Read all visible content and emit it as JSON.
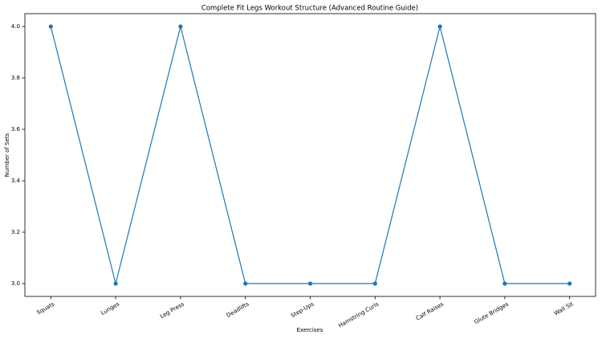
{
  "chart_data": {
    "type": "line",
    "title": "Complete Fit Legs Workout Structure (Advanced Routine Guide)",
    "x_label": "Exercises",
    "y_label": "Number of Sets",
    "categories": [
      "Squats",
      "Lunges",
      "Leg Press",
      "Deadlifts",
      "Step-Ups",
      "Hamstring Curls",
      "Calf Raises",
      "Glute Bridges",
      "Wall Sit"
    ],
    "values": [
      4,
      3,
      4,
      3,
      3,
      3,
      4,
      3,
      3
    ],
    "color": "#1f77b4",
    "ylim": [
      2.95,
      4.05
    ],
    "yticks": [
      {
        "value": 3,
        "label": "3.0"
      },
      3.2,
      3.4,
      3.6,
      3.8,
      {
        "value": 4,
        "label": "4.0"
      }
    ],
    "grid": false
  }
}
